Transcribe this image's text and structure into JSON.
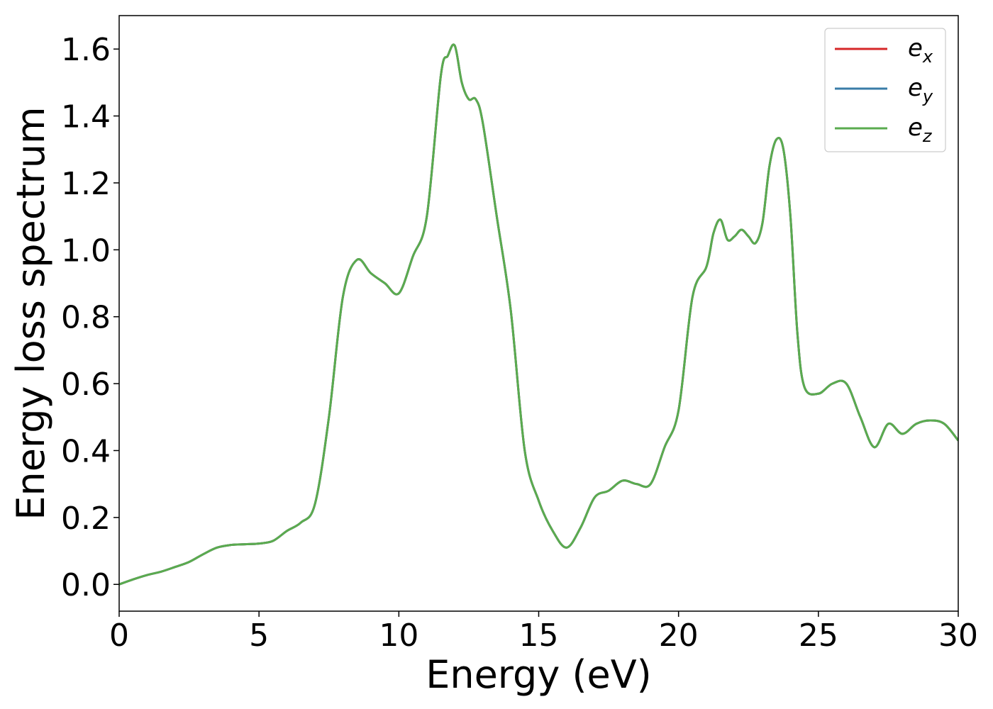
{
  "chart_data": {
    "type": "line",
    "xlabel": "Energy (eV)",
    "ylabel": "Energy loss spectrum",
    "xlim": [
      0,
      30
    ],
    "ylim": [
      -0.08,
      1.7
    ],
    "xticks": [
      0,
      5,
      10,
      15,
      20,
      25,
      30
    ],
    "xtick_labels": [
      "0",
      "5",
      "10",
      "15",
      "20",
      "25",
      "30"
    ],
    "yticks": [
      0.0,
      0.2,
      0.4,
      0.6,
      0.8,
      1.0,
      1.2,
      1.4,
      1.6
    ],
    "ytick_labels": [
      "0.0",
      "0.2",
      "0.4",
      "0.6",
      "0.8",
      "1.0",
      "1.2",
      "1.4",
      "1.6"
    ],
    "grid": false,
    "legend_position": "top-right",
    "x": [
      0,
      0.5,
      1,
      1.5,
      2,
      2.5,
      3,
      3.5,
      4,
      4.5,
      5,
      5.5,
      6,
      6.5,
      7,
      7.5,
      8,
      8.5,
      9,
      9.5,
      10,
      10.5,
      11,
      11.5,
      11.75,
      12,
      12.25,
      12.5,
      12.75,
      13,
      13.5,
      14,
      14.5,
      15,
      15.5,
      16,
      16.5,
      17,
      17.5,
      18,
      18.5,
      19,
      19.5,
      20,
      20.5,
      21,
      21.25,
      21.5,
      21.75,
      22,
      22.25,
      22.5,
      22.75,
      23,
      23.25,
      23.5,
      23.75,
      24,
      24.25,
      24.5,
      25,
      25.5,
      26,
      26.5,
      27,
      27.5,
      28,
      28.5,
      29,
      29.5,
      30
    ],
    "series": [
      {
        "name": "e",
        "subscript": "x",
        "color": "#d62728",
        "values": [
          0.0,
          0.015,
          0.028,
          0.038,
          0.052,
          0.067,
          0.09,
          0.11,
          0.118,
          0.12,
          0.122,
          0.13,
          0.16,
          0.185,
          0.24,
          0.5,
          0.86,
          0.97,
          0.93,
          0.9,
          0.87,
          0.98,
          1.1,
          1.52,
          1.58,
          1.61,
          1.5,
          1.45,
          1.45,
          1.38,
          1.1,
          0.82,
          0.4,
          0.25,
          0.16,
          0.11,
          0.17,
          0.26,
          0.28,
          0.31,
          0.3,
          0.3,
          0.41,
          0.52,
          0.86,
          0.95,
          1.05,
          1.09,
          1.03,
          1.04,
          1.06,
          1.04,
          1.02,
          1.08,
          1.25,
          1.33,
          1.3,
          1.1,
          0.75,
          0.59,
          0.57,
          0.6,
          0.6,
          0.5,
          0.41,
          0.48,
          0.45,
          0.48,
          0.49,
          0.48,
          0.43
        ]
      },
      {
        "name": "e",
        "subscript": "y",
        "color": "#3a7ca8",
        "values": [
          0.0,
          0.015,
          0.028,
          0.038,
          0.052,
          0.067,
          0.09,
          0.11,
          0.118,
          0.12,
          0.122,
          0.13,
          0.16,
          0.185,
          0.24,
          0.5,
          0.86,
          0.97,
          0.93,
          0.9,
          0.87,
          0.98,
          1.1,
          1.52,
          1.58,
          1.61,
          1.5,
          1.45,
          1.45,
          1.38,
          1.1,
          0.82,
          0.4,
          0.25,
          0.16,
          0.11,
          0.17,
          0.26,
          0.28,
          0.31,
          0.3,
          0.3,
          0.41,
          0.52,
          0.86,
          0.95,
          1.05,
          1.09,
          1.03,
          1.04,
          1.06,
          1.04,
          1.02,
          1.08,
          1.25,
          1.33,
          1.3,
          1.1,
          0.75,
          0.59,
          0.57,
          0.6,
          0.6,
          0.5,
          0.41,
          0.48,
          0.45,
          0.48,
          0.49,
          0.48,
          0.43
        ]
      },
      {
        "name": "e",
        "subscript": "z",
        "color": "#5aab4f",
        "values": [
          0.0,
          0.015,
          0.028,
          0.038,
          0.052,
          0.067,
          0.09,
          0.11,
          0.118,
          0.12,
          0.122,
          0.13,
          0.16,
          0.185,
          0.24,
          0.5,
          0.86,
          0.97,
          0.93,
          0.9,
          0.87,
          0.98,
          1.1,
          1.52,
          1.58,
          1.61,
          1.5,
          1.45,
          1.45,
          1.38,
          1.1,
          0.82,
          0.4,
          0.25,
          0.16,
          0.11,
          0.17,
          0.26,
          0.28,
          0.31,
          0.3,
          0.3,
          0.41,
          0.52,
          0.86,
          0.95,
          1.05,
          1.09,
          1.03,
          1.04,
          1.06,
          1.04,
          1.02,
          1.08,
          1.25,
          1.33,
          1.3,
          1.1,
          0.75,
          0.59,
          0.57,
          0.6,
          0.6,
          0.5,
          0.41,
          0.48,
          0.45,
          0.48,
          0.49,
          0.48,
          0.43
        ]
      }
    ]
  }
}
